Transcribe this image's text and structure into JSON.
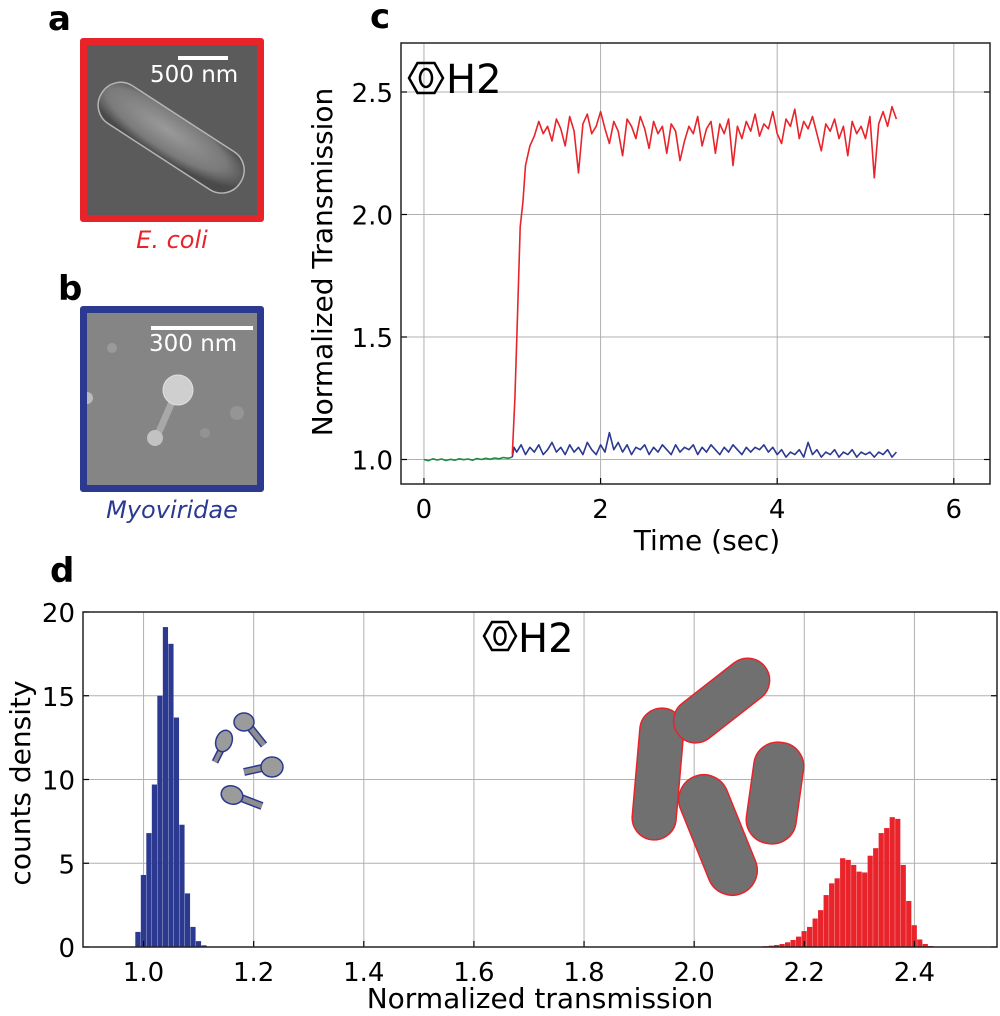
{
  "colors": {
    "ecoli": "#e8232a",
    "phage": "#2b3990",
    "baseline": "#1e8a3c",
    "grid": "#b0b0b0"
  },
  "panel_a": {
    "label": "a",
    "scale_bar": "500 nm",
    "caption": "E. coli"
  },
  "panel_b": {
    "label": "b",
    "scale_bar": "300 nm",
    "caption": "Myoviridae"
  },
  "panel_c_label": "c",
  "panel_d_label": "d",
  "chart_data": [
    {
      "type": "line",
      "annotation": {
        "icon": "benzene-ring-icon",
        "text": "H2"
      },
      "xlabel": "Time (sec)",
      "ylabel": "Normalized Transmission",
      "xlim": [
        -0.26,
        6.41
      ],
      "ylim": [
        0.9,
        2.7
      ],
      "xticks": [
        0,
        2,
        4,
        6
      ],
      "xtick_labels": [
        "0",
        "2",
        "4",
        "6"
      ],
      "yticks": [
        1.0,
        1.5,
        2.0,
        2.5
      ],
      "ytick_labels": [
        "1.0",
        "1.5",
        "2.0",
        "2.5"
      ],
      "grid": true,
      "series": [
        {
          "color": "#1e8a3c",
          "points": [
            [
              0,
              1.0
            ],
            [
              0.05,
              0.995
            ],
            [
              0.1,
              1.003
            ],
            [
              0.15,
              0.998
            ],
            [
              0.2,
              1.002
            ],
            [
              0.25,
              0.996
            ],
            [
              0.3,
              1.001
            ],
            [
              0.35,
              0.997
            ],
            [
              0.4,
              1.003
            ],
            [
              0.45,
              0.999
            ],
            [
              0.5,
              1.002
            ],
            [
              0.55,
              0.997
            ],
            [
              0.6,
              1.004
            ],
            [
              0.65,
              1.0
            ],
            [
              0.7,
              1.005
            ],
            [
              0.75,
              1.001
            ],
            [
              0.8,
              1.006
            ],
            [
              0.85,
              1.003
            ],
            [
              0.9,
              1.008
            ],
            [
              0.95,
              1.005
            ],
            [
              1.0,
              1.01
            ]
          ]
        },
        {
          "color": "#2b3990",
          "points": [
            [
              1.0,
              1.01
            ],
            [
              1.02,
              1.05
            ],
            [
              1.05,
              1.03
            ],
            [
              1.1,
              1.06
            ],
            [
              1.15,
              1.02
            ],
            [
              1.2,
              1.05
            ],
            [
              1.25,
              1.03
            ],
            [
              1.3,
              1.06
            ],
            [
              1.35,
              1.02
            ],
            [
              1.4,
              1.04
            ],
            [
              1.45,
              1.07
            ],
            [
              1.5,
              1.03
            ],
            [
              1.55,
              1.05
            ],
            [
              1.6,
              1.02
            ],
            [
              1.65,
              1.06
            ],
            [
              1.7,
              1.03
            ],
            [
              1.75,
              1.05
            ],
            [
              1.8,
              1.02
            ],
            [
              1.85,
              1.07
            ],
            [
              1.9,
              1.04
            ],
            [
              1.95,
              1.02
            ],
            [
              2.0,
              1.06
            ],
            [
              2.05,
              1.03
            ],
            [
              2.1,
              1.11
            ],
            [
              2.15,
              1.04
            ],
            [
              2.2,
              1.07
            ],
            [
              2.25,
              1.03
            ],
            [
              2.3,
              1.06
            ],
            [
              2.35,
              1.02
            ],
            [
              2.4,
              1.05
            ],
            [
              2.45,
              1.04
            ],
            [
              2.5,
              1.06
            ],
            [
              2.55,
              1.02
            ],
            [
              2.6,
              1.05
            ],
            [
              2.65,
              1.03
            ],
            [
              2.7,
              1.06
            ],
            [
              2.75,
              1.04
            ],
            [
              2.8,
              1.02
            ],
            [
              2.85,
              1.06
            ],
            [
              2.9,
              1.03
            ],
            [
              2.95,
              1.05
            ],
            [
              3.0,
              1.04
            ],
            [
              3.05,
              1.06
            ],
            [
              3.1,
              1.02
            ],
            [
              3.15,
              1.05
            ],
            [
              3.2,
              1.03
            ],
            [
              3.25,
              1.06
            ],
            [
              3.3,
              1.04
            ],
            [
              3.35,
              1.02
            ],
            [
              3.4,
              1.05
            ],
            [
              3.45,
              1.03
            ],
            [
              3.5,
              1.06
            ],
            [
              3.55,
              1.04
            ],
            [
              3.6,
              1.02
            ],
            [
              3.65,
              1.05
            ],
            [
              3.7,
              1.03
            ],
            [
              3.75,
              1.05
            ],
            [
              3.8,
              1.04
            ],
            [
              3.85,
              1.06
            ],
            [
              3.9,
              1.03
            ],
            [
              3.95,
              1.05
            ],
            [
              4.0,
              1.02
            ],
            [
              4.05,
              1.04
            ],
            [
              4.1,
              1.01
            ],
            [
              4.15,
              1.03
            ],
            [
              4.2,
              1.02
            ],
            [
              4.25,
              1.04
            ],
            [
              4.3,
              1.01
            ],
            [
              4.35,
              1.07
            ],
            [
              4.4,
              1.02
            ],
            [
              4.45,
              1.04
            ],
            [
              4.5,
              1.01
            ],
            [
              4.55,
              1.03
            ],
            [
              4.6,
              1.02
            ],
            [
              4.65,
              1.04
            ],
            [
              4.7,
              1.01
            ],
            [
              4.75,
              1.03
            ],
            [
              4.8,
              1.02
            ],
            [
              4.85,
              1.04
            ],
            [
              4.9,
              1.01
            ],
            [
              4.95,
              1.03
            ],
            [
              5.0,
              1.02
            ],
            [
              5.05,
              1.03
            ],
            [
              5.1,
              1.01
            ],
            [
              5.15,
              1.03
            ],
            [
              5.2,
              1.02
            ],
            [
              5.25,
              1.04
            ],
            [
              5.3,
              1.01
            ],
            [
              5.35,
              1.03
            ]
          ]
        },
        {
          "color": "#e8232a",
          "points": [
            [
              1.0,
              1.02
            ],
            [
              1.03,
              1.25
            ],
            [
              1.06,
              1.6
            ],
            [
              1.09,
              1.95
            ],
            [
              1.12,
              2.05
            ],
            [
              1.15,
              2.2
            ],
            [
              1.2,
              2.28
            ],
            [
              1.25,
              2.32
            ],
            [
              1.3,
              2.38
            ],
            [
              1.35,
              2.33
            ],
            [
              1.4,
              2.36
            ],
            [
              1.45,
              2.3
            ],
            [
              1.5,
              2.39
            ],
            [
              1.55,
              2.35
            ],
            [
              1.6,
              2.28
            ],
            [
              1.65,
              2.4
            ],
            [
              1.7,
              2.34
            ],
            [
              1.75,
              2.17
            ],
            [
              1.8,
              2.37
            ],
            [
              1.85,
              2.41
            ],
            [
              1.9,
              2.33
            ],
            [
              1.95,
              2.36
            ],
            [
              2.0,
              2.42
            ],
            [
              2.05,
              2.35
            ],
            [
              2.1,
              2.29
            ],
            [
              2.15,
              2.38
            ],
            [
              2.2,
              2.34
            ],
            [
              2.25,
              2.24
            ],
            [
              2.3,
              2.39
            ],
            [
              2.35,
              2.36
            ],
            [
              2.4,
              2.31
            ],
            [
              2.45,
              2.4
            ],
            [
              2.5,
              2.35
            ],
            [
              2.55,
              2.27
            ],
            [
              2.6,
              2.38
            ],
            [
              2.65,
              2.33
            ],
            [
              2.7,
              2.36
            ],
            [
              2.75,
              2.25
            ],
            [
              2.8,
              2.37
            ],
            [
              2.85,
              2.34
            ],
            [
              2.9,
              2.22
            ],
            [
              2.95,
              2.3
            ],
            [
              3.0,
              2.36
            ],
            [
              3.05,
              2.33
            ],
            [
              3.1,
              2.4
            ],
            [
              3.15,
              2.28
            ],
            [
              3.2,
              2.35
            ],
            [
              3.25,
              2.38
            ],
            [
              3.3,
              2.25
            ],
            [
              3.35,
              2.37
            ],
            [
              3.4,
              2.33
            ],
            [
              3.45,
              2.39
            ],
            [
              3.5,
              2.2
            ],
            [
              3.55,
              2.36
            ],
            [
              3.6,
              2.31
            ],
            [
              3.65,
              2.38
            ],
            [
              3.7,
              2.34
            ],
            [
              3.75,
              2.41
            ],
            [
              3.8,
              2.32
            ],
            [
              3.85,
              2.37
            ],
            [
              3.9,
              2.35
            ],
            [
              3.95,
              2.42
            ],
            [
              4.0,
              2.33
            ],
            [
              4.05,
              2.29
            ],
            [
              4.1,
              2.39
            ],
            [
              4.15,
              2.36
            ],
            [
              4.2,
              2.43
            ],
            [
              4.25,
              2.31
            ],
            [
              4.3,
              2.38
            ],
            [
              4.35,
              2.35
            ],
            [
              4.4,
              2.4
            ],
            [
              4.45,
              2.33
            ],
            [
              4.5,
              2.26
            ],
            [
              4.55,
              2.37
            ],
            [
              4.6,
              2.34
            ],
            [
              4.65,
              2.39
            ],
            [
              4.7,
              2.31
            ],
            [
              4.75,
              2.36
            ],
            [
              4.8,
              2.24
            ],
            [
              4.85,
              2.38
            ],
            [
              4.9,
              2.33
            ],
            [
              4.95,
              2.36
            ],
            [
              5.0,
              2.31
            ],
            [
              5.05,
              2.4
            ],
            [
              5.1,
              2.15
            ],
            [
              5.15,
              2.37
            ],
            [
              5.2,
              2.42
            ],
            [
              5.25,
              2.36
            ],
            [
              5.3,
              2.44
            ],
            [
              5.35,
              2.39
            ]
          ]
        }
      ]
    },
    {
      "type": "bar",
      "subtype": "histogram",
      "annotation": {
        "icon": "benzene-ring-icon",
        "text": "H2"
      },
      "xlabel": "Normalized transmission",
      "ylabel": "counts density",
      "xlim": [
        0.89,
        2.55
      ],
      "ylim": [
        0,
        20
      ],
      "xticks": [
        1.0,
        1.2,
        1.4,
        1.6,
        1.8,
        2.0,
        2.2,
        2.4
      ],
      "xtick_labels": [
        "1.0",
        "1.2",
        "1.4",
        "1.6",
        "1.8",
        "2.0",
        "2.2",
        "2.4"
      ],
      "yticks": [
        0,
        5,
        10,
        15,
        20
      ],
      "ytick_labels": [
        "0",
        "5",
        "10",
        "15",
        "20"
      ],
      "grid": true,
      "bin_width": 0.01,
      "series": [
        {
          "color": "#2b3990",
          "bin_centers": [
            0.99,
            1.0,
            1.01,
            1.02,
            1.03,
            1.04,
            1.05,
            1.06,
            1.07,
            1.08,
            1.09,
            1.1,
            1.11
          ],
          "values": [
            0.9,
            4.3,
            6.8,
            9.7,
            15.0,
            19.1,
            18.1,
            13.7,
            7.3,
            3.2,
            1.2,
            0.35,
            0.1
          ]
        },
        {
          "color": "#e8232a",
          "bin_centers": [
            2.12,
            2.13,
            2.14,
            2.15,
            2.16,
            2.17,
            2.18,
            2.19,
            2.2,
            2.21,
            2.22,
            2.23,
            2.24,
            2.25,
            2.26,
            2.27,
            2.28,
            2.29,
            2.3,
            2.31,
            2.32,
            2.33,
            2.34,
            2.35,
            2.36,
            2.37,
            2.38,
            2.39,
            2.4,
            2.41,
            2.42,
            2.43
          ],
          "values": [
            0.02,
            0.05,
            0.08,
            0.12,
            0.18,
            0.28,
            0.42,
            0.62,
            0.95,
            1.2,
            1.7,
            2.2,
            3.1,
            3.8,
            4.1,
            5.3,
            5.2,
            4.9,
            4.5,
            4.45,
            5.45,
            5.9,
            6.8,
            7.1,
            7.75,
            7.65,
            4.9,
            2.75,
            1.3,
            0.45,
            0.18,
            0.06
          ]
        }
      ]
    }
  ]
}
